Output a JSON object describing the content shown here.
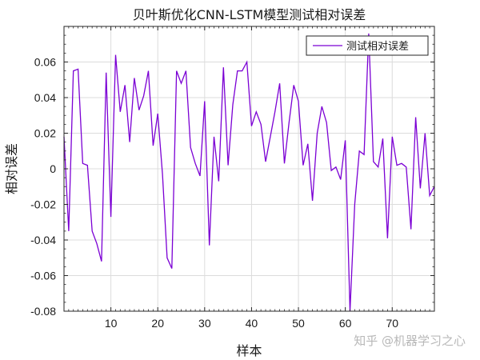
{
  "chart_data": {
    "type": "line",
    "title": "贝叶斯优化CNN-LSTM模型测试相对误差",
    "xlabel": "样本",
    "ylabel": "相对误差",
    "xlim": [
      0,
      79
    ],
    "ylim": [
      -0.08,
      0.08
    ],
    "xticks": [
      10,
      20,
      30,
      40,
      50,
      60,
      70
    ],
    "yticks": [
      -0.08,
      -0.06,
      -0.04,
      -0.02,
      0,
      0.02,
      0.04,
      0.06
    ],
    "grid": true,
    "legend_position": "top-right",
    "series": [
      {
        "name": "测试相对误差",
        "color": "#7b00d4",
        "x": [
          0,
          1,
          2,
          3,
          4,
          5,
          6,
          7,
          8,
          9,
          10,
          11,
          12,
          13,
          14,
          15,
          16,
          17,
          18,
          19,
          20,
          21,
          22,
          23,
          24,
          25,
          26,
          27,
          28,
          29,
          30,
          31,
          32,
          33,
          34,
          35,
          36,
          37,
          38,
          39,
          40,
          41,
          42,
          43,
          44,
          45,
          46,
          47,
          48,
          49,
          50,
          51,
          52,
          53,
          54,
          55,
          56,
          57,
          58,
          59,
          60,
          61,
          62,
          63,
          64,
          65,
          66,
          67,
          68,
          69,
          70,
          71,
          72,
          73,
          74,
          75,
          76,
          77,
          78,
          79
        ],
        "values": [
          0.018,
          -0.035,
          0.055,
          0.056,
          0.003,
          0.002,
          -0.035,
          -0.042,
          -0.052,
          0.054,
          -0.027,
          0.064,
          0.032,
          0.047,
          0.015,
          0.051,
          0.033,
          0.041,
          0.055,
          0.013,
          0.031,
          -0.003,
          -0.05,
          -0.056,
          0.055,
          0.048,
          0.055,
          0.012,
          0.003,
          -0.004,
          0.038,
          -0.043,
          0.018,
          -0.007,
          0.057,
          0.002,
          0.036,
          0.055,
          0.055,
          0.06,
          0.024,
          0.032,
          0.025,
          0.004,
          0.018,
          0.032,
          0.048,
          0.003,
          0.026,
          0.047,
          0.038,
          0.002,
          0.014,
          -0.018,
          0.02,
          0.035,
          0.026,
          -0.001,
          0.001,
          -0.006,
          0.016,
          -0.08,
          -0.02,
          0.01,
          0.008,
          0.076,
          0.004,
          0.001,
          0.017,
          -0.039,
          0.018,
          0.002,
          0.003,
          0.001,
          -0.034,
          0.029,
          -0.011,
          0.02,
          -0.015,
          -0.01
        ]
      }
    ]
  },
  "watermark": "知乎 @机器学习之心"
}
